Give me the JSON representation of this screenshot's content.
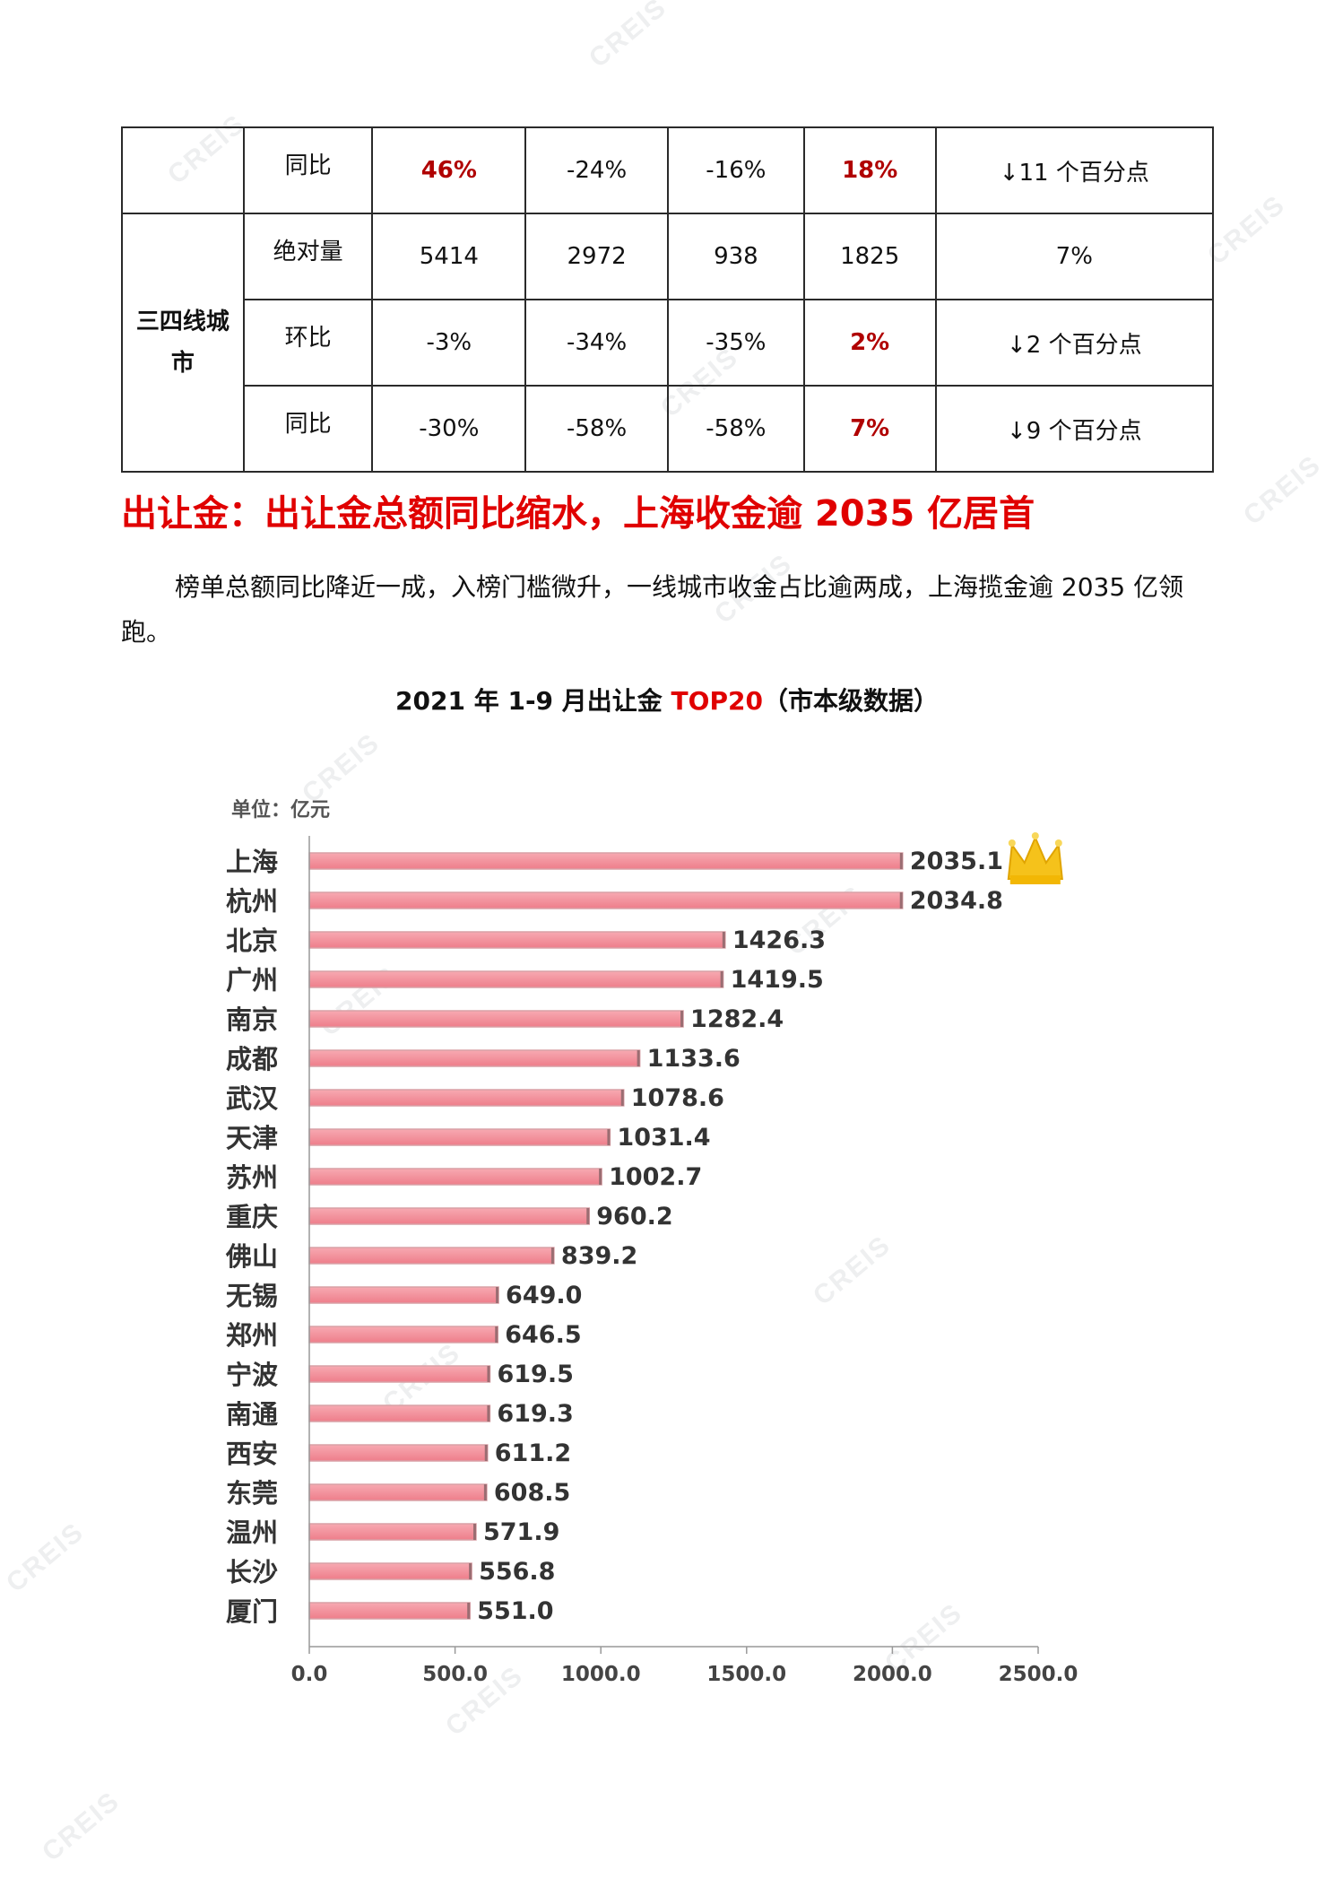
{
  "watermark": "CREIS",
  "table": {
    "rows": [
      {
        "category": "",
        "metric": "同比",
        "values": [
          "46%",
          "-24%",
          "-16%",
          "18%",
          "↓11 个百分点"
        ],
        "highlight": [
          true,
          false,
          false,
          true,
          false
        ]
      },
      {
        "category": "三四线城市",
        "metric": "绝对量",
        "values": [
          "5414",
          "2972",
          "938",
          "1825",
          "7%"
        ],
        "highlight": [
          false,
          false,
          false,
          false,
          false
        ]
      },
      {
        "category": "",
        "metric": "环比",
        "values": [
          "-3%",
          "-34%",
          "-35%",
          "2%",
          "↓2 个百分点"
        ],
        "highlight": [
          false,
          false,
          false,
          true,
          false
        ]
      },
      {
        "category": "",
        "metric": "同比",
        "values": [
          "-30%",
          "-58%",
          "-58%",
          "7%",
          "↓9 个百分点"
        ],
        "highlight": [
          false,
          false,
          false,
          true,
          false
        ]
      }
    ],
    "category_line1": "三四线城",
    "category_line2": "市"
  },
  "heading": "出让金：出让金总额同比缩水，上海收金逾 2035 亿居首",
  "paragraph": "榜单总额同比降近一成，入榜门槛微升，一线城市收金占比逾两成，上海揽金逾 2035 亿领跑。",
  "chart_title": {
    "prefix": "2021 年 1-9 月出让金 ",
    "highlight": "TOP20",
    "suffix": "（市本级数据）"
  },
  "chart_data": {
    "type": "bar",
    "orientation": "horizontal",
    "unit_label": "单位：亿元",
    "categories": [
      "上海",
      "杭州",
      "北京",
      "广州",
      "南京",
      "成都",
      "武汉",
      "天津",
      "苏州",
      "重庆",
      "佛山",
      "无锡",
      "郑州",
      "宁波",
      "南通",
      "西安",
      "东莞",
      "温州",
      "长沙",
      "厦门"
    ],
    "values": [
      2035.1,
      2034.8,
      1426.3,
      1419.5,
      1282.4,
      1133.6,
      1078.6,
      1031.4,
      1002.7,
      960.2,
      839.2,
      649.0,
      646.5,
      619.5,
      619.3,
      611.2,
      608.5,
      571.9,
      556.8,
      551.0
    ],
    "value_labels": [
      "2035.1",
      "2034.8",
      "1426.3",
      "1419.5",
      "1282.4",
      "1133.6",
      "1078.6",
      "1031.4",
      "1002.7",
      "960.2",
      "839.2",
      "649.0",
      "646.5",
      "619.5",
      "619.3",
      "611.2",
      "608.5",
      "571.9",
      "556.8",
      "551.0"
    ],
    "x_ticks": [
      "0.0",
      "500.0",
      "1000.0",
      "1500.0",
      "2000.0",
      "2500.0"
    ],
    "xlim": [
      0,
      2500
    ],
    "bar_color": "#f28b96",
    "crown_on_first": true
  }
}
